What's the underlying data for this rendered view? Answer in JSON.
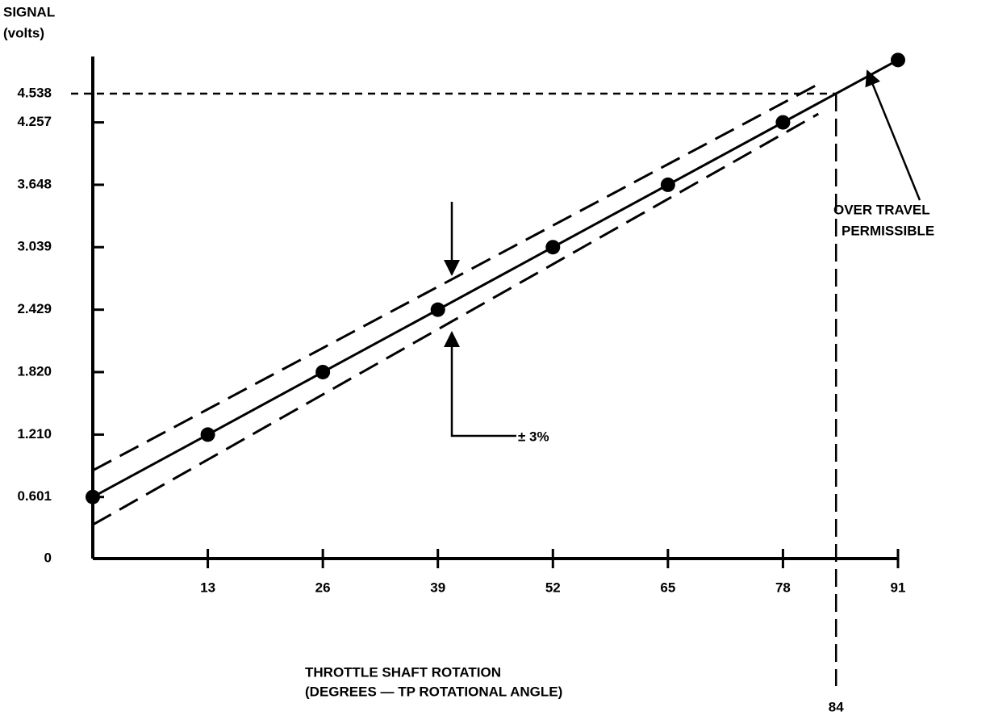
{
  "chart_data": {
    "type": "line",
    "y_label": [
      "SIGNAL",
      "(volts)"
    ],
    "x_label": [
      "THROTTLE SHAFT ROTATION",
      "(DEGREES — TP ROTATIONAL ANGLE)"
    ],
    "x": [
      0,
      13,
      26,
      39,
      52,
      65,
      78,
      91
    ],
    "series": [
      {
        "color": "#000000",
        "values": [
          0.601,
          1.21,
          1.82,
          2.429,
          3.039,
          3.648,
          4.257,
          4.866
        ],
        "markers": true,
        "dashed": false
      }
    ],
    "bands": [
      {
        "x": [
          0,
          82
        ],
        "values": [
          0.86,
          4.63
        ],
        "color": "#000000",
        "dashed": true
      },
      {
        "x": [
          0,
          82
        ],
        "values": [
          0.33,
          4.34
        ],
        "color": "#000000",
        "dashed": true
      }
    ],
    "xlim": [
      0,
      91
    ],
    "ylim": [
      0,
      4.9
    ],
    "xticks": [
      13,
      26,
      39,
      52,
      65,
      78,
      91
    ],
    "yticks": [
      0,
      0.601,
      {
        "value": 1.21,
        "label": "1.210"
      },
      {
        "value": 1.82,
        "label": "1.820"
      },
      2.429,
      3.039,
      3.648,
      4.257,
      4.538
    ],
    "reference_x": 84,
    "reference_y": 4.538,
    "annotations": {
      "over_travel": [
        "OVER TRAVEL",
        "PERMISSIBLE"
      ],
      "tolerance": "± 3%"
    },
    "grid": false
  }
}
